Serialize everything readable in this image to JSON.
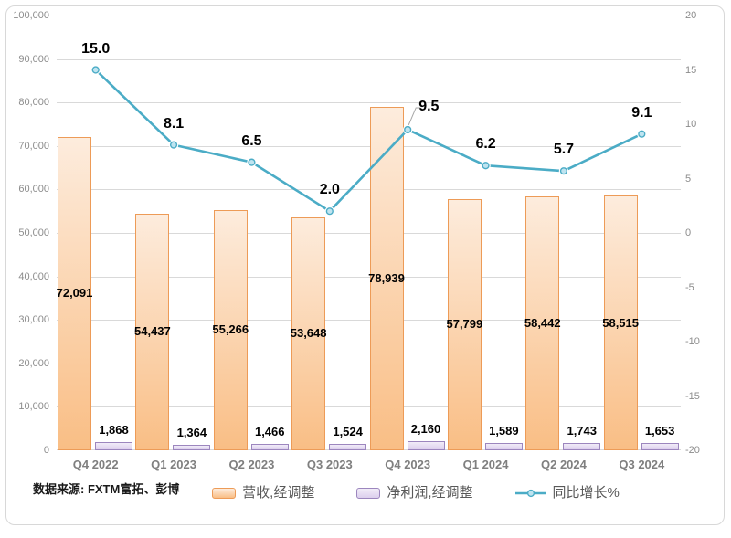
{
  "source_note": "数据来源: FXTM富拓、彭博",
  "colors": {
    "revenue_fill_top": "#FDECDD",
    "revenue_fill_bottom": "#F9BE85",
    "revenue_border": "#ED9B57",
    "profit_fill_top": "#F1ECF8",
    "profit_fill_bottom": "#DCCFED",
    "profit_border": "#9C86BE",
    "line": "#4BACC6",
    "marker_fill": "#BFE4F0",
    "gridline": "#D9D9D9",
    "axis_text": "#8C8C8C",
    "category_text": "#7F7F7F",
    "value_label": "#000000",
    "legend_text": "#595959",
    "frame_border": "#D8D8D8",
    "leader_line": "#A6A6A6"
  },
  "chart_data": {
    "type": "combo-bar-line",
    "categories": [
      "Q4 2022",
      "Q1 2023",
      "Q2 2023",
      "Q3 2023",
      "Q4 2023",
      "Q1 2024",
      "Q2 2024",
      "Q3 2024"
    ],
    "series": [
      {
        "name": "营收,经调整",
        "type": "bar",
        "axis": "left",
        "values": [
          72091,
          54437,
          55266,
          53648,
          78939,
          57799,
          58442,
          58515
        ],
        "labels": [
          "72,091",
          "54,437",
          "55,266",
          "53,648",
          "78,939",
          "57,799",
          "58,442",
          "58,515"
        ]
      },
      {
        "name": "净利润,经调整",
        "type": "bar",
        "axis": "left",
        "values": [
          1868,
          1364,
          1466,
          1524,
          2160,
          1589,
          1743,
          1653
        ],
        "labels": [
          "1,868",
          "1,364",
          "1,466",
          "1,524",
          "2,160",
          "1,589",
          "1,743",
          "1,653"
        ]
      },
      {
        "name": "同比增长%",
        "type": "line",
        "axis": "right",
        "values": [
          15.0,
          8.1,
          6.5,
          2.0,
          9.5,
          6.2,
          5.7,
          9.1
        ],
        "labels": [
          "15.0",
          "8.1",
          "6.5",
          "2.0",
          "9.5",
          "6.2",
          "5.7",
          "9.1"
        ]
      }
    ],
    "left_axis": {
      "min": 0,
      "max": 100000,
      "step": 10000,
      "ticks": [
        "0",
        "10,000",
        "20,000",
        "30,000",
        "40,000",
        "50,000",
        "60,000",
        "70,000",
        "80,000",
        "90,000",
        "100,000"
      ]
    },
    "right_axis": {
      "min": -20,
      "max": 20,
      "step": 5,
      "ticks": [
        "-20",
        "-15",
        "-10",
        "-5",
        "0",
        "5",
        "10",
        "15",
        "20"
      ]
    },
    "legend_position": "bottom",
    "grid": "horizontal"
  }
}
